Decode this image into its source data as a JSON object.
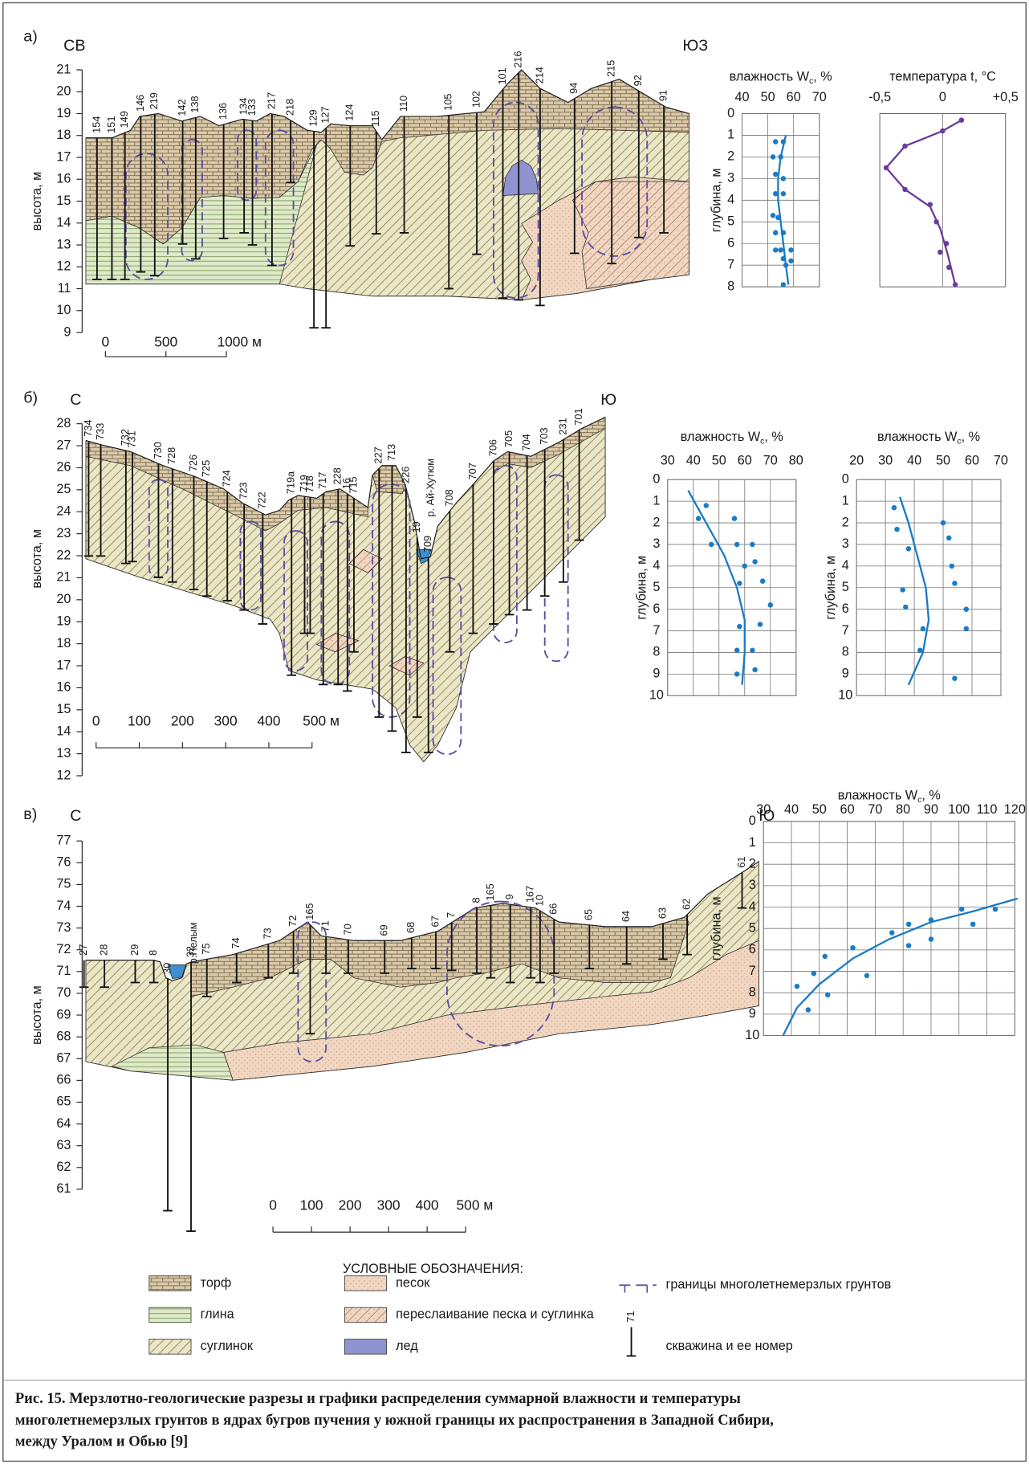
{
  "panels": [
    {
      "label": "а)",
      "dir_left": "СВ",
      "dir_right": "ЮЗ",
      "y_label": "высота, м",
      "yticks": [
        9,
        10,
        11,
        12,
        13,
        14,
        15,
        16,
        17,
        18,
        19,
        20,
        21
      ],
      "scale": [
        0,
        500,
        {
          "value": 1000,
          "label": "1000 м"
        }
      ],
      "boreholes": [
        "154",
        "151",
        "149",
        "146",
        "219",
        "142",
        "138",
        "136",
        "134",
        "133",
        "217",
        "218",
        "129",
        "127",
        "124",
        "115",
        "110",
        "105",
        "102",
        "101",
        "216",
        "214",
        "94",
        "215",
        "92",
        "91"
      ],
      "charts": [
        {
          "type": "scatter",
          "title": "влажность W",
          "title_sub": "c",
          "title_end": ", %",
          "y_label": "глубина, м",
          "xlim": [
            40,
            70
          ],
          "xticks": [
            40,
            50,
            60,
            70
          ],
          "ylim": [
            0,
            8
          ],
          "yticks": [
            0,
            1,
            2,
            3,
            4,
            5,
            6,
            7,
            8
          ],
          "color": "#1b7bc4",
          "points": {
            "x": [
              53,
              56,
              52,
              55,
              53,
              56,
              53,
              56,
              52,
              54,
              53,
              56,
              53,
              55,
              59,
              56,
              57,
              59,
              56
            ],
            "y": [
              1.3,
              1.3,
              2,
              2,
              2.8,
              3,
              3.7,
              3.7,
              4.7,
              4.8,
              5.5,
              5.5,
              6.3,
              6.3,
              6.3,
              6.7,
              7,
              6.8,
              7.9
            ]
          },
          "curve": {
            "x": [
              57,
              55,
              54,
              54,
              55,
              56,
              57,
              58
            ],
            "y": [
              1,
              2,
              3,
              4,
              5,
              6,
              7,
              7.9
            ]
          }
        },
        {
          "type": "scatter",
          "title": "температура t, °C",
          "xlim": [
            -0.5,
            0.5
          ],
          "xticks": [
            {
              "value": -0.5,
              "label": "-0,5"
            },
            0,
            {
              "value": 0.5,
              "label": "+0,5"
            }
          ],
          "ylim": [
            0,
            8
          ],
          "color": "#6a3d9a",
          "points": {
            "x": [
              0.15,
              0,
              -0.3,
              -0.45,
              -0.3,
              -0.1,
              -0.05,
              0.03,
              -0.02,
              0.05,
              0.1
            ],
            "y": [
              0.3,
              0.8,
              1.5,
              2.5,
              3.5,
              4.2,
              5,
              6,
              6.4,
              7.1,
              7.9
            ]
          },
          "curve": {
            "x": [
              0.15,
              0,
              -0.3,
              -0.45,
              -0.3,
              -0.1,
              -0.02,
              0.04,
              0.1
            ],
            "y": [
              0.3,
              0.8,
              1.5,
              2.5,
              3.5,
              4.3,
              5.3,
              6.5,
              7.9
            ]
          }
        }
      ]
    },
    {
      "label": "б)",
      "dir_left": "С",
      "dir_right": "Ю",
      "y_label": "высота, м",
      "river": "р. Ай-Хутюм",
      "yticks": [
        12,
        13,
        14,
        15,
        16,
        17,
        18,
        19,
        20,
        21,
        22,
        23,
        24,
        25,
        26,
        27,
        28
      ],
      "scale": [
        0,
        100,
        200,
        300,
        400,
        {
          "value": 500,
          "label": "500 м"
        }
      ],
      "boreholes": [
        "734",
        "733",
        "732",
        "731",
        "730",
        "728",
        "726",
        "725",
        "724",
        "723",
        "722",
        "719а",
        "719",
        "718",
        "717",
        "228",
        "16",
        "715",
        "227",
        "713",
        "226",
        "19",
        "709",
        "708",
        "707",
        "706",
        "705",
        "704",
        "703",
        "231",
        "701"
      ],
      "charts": [
        {
          "type": "scatter",
          "title": "влажность W",
          "title_sub": "c",
          "title_end": ", %",
          "y_label": "глубина, м",
          "xlim": [
            30,
            80
          ],
          "xticks": [
            30,
            40,
            50,
            60,
            70,
            80
          ],
          "ylim": [
            0,
            10
          ],
          "yticks": [
            0,
            1,
            2,
            3,
            4,
            5,
            6,
            7,
            8,
            9,
            10
          ],
          "color": "#1b7bc4",
          "points": {
            "x": [
              42,
              45,
              47,
              56,
              57,
              63,
              60,
              64,
              58,
              67,
              70,
              58,
              66,
              57,
              63,
              57,
              64
            ],
            "y": [
              1.8,
              1.2,
              3,
              1.8,
              3,
              3,
              4,
              3.8,
              4.8,
              4.7,
              5.8,
              6.8,
              6.7,
              7.9,
              7.9,
              9,
              8.8
            ]
          },
          "curve": {
            "x": [
              38,
              45,
              52,
              57,
              60,
              60,
              59
            ],
            "y": [
              0.5,
              2,
              3.5,
              5,
              6.5,
              8,
              9.5
            ]
          }
        },
        {
          "type": "scatter",
          "title": "влажность W",
          "title_sub": "c",
          "title_end": ", %",
          "y_label": "глубина, м",
          "xlim": [
            20,
            70
          ],
          "xticks": [
            20,
            30,
            40,
            50,
            60,
            70
          ],
          "ylim": [
            0,
            10
          ],
          "yticks": [
            0,
            1,
            2,
            3,
            4,
            5,
            6,
            7,
            8,
            9,
            10
          ],
          "color": "#1b7bc4",
          "points": {
            "x": [
              33,
              34,
              38,
              50,
              52,
              53,
              54,
              36,
              37,
              58,
              58,
              43,
              42,
              54
            ],
            "y": [
              1.3,
              2.3,
              3.2,
              2,
              2.7,
              4,
              4.8,
              5.1,
              5.9,
              6,
              6.9,
              6.9,
              7.9,
              9.2
            ]
          },
          "curve": {
            "x": [
              35,
              38,
              41,
              44,
              45,
              43,
              38
            ],
            "y": [
              0.8,
              2,
              3.5,
              5,
              6.5,
              8,
              9.5
            ]
          }
        }
      ]
    },
    {
      "label": "в)",
      "dir_left": "С",
      "dir_right": "Ю",
      "y_label": "высота, м",
      "river": "р.Пелым",
      "yticks": [
        61,
        62,
        63,
        64,
        65,
        66,
        67,
        68,
        69,
        70,
        71,
        72,
        73,
        74,
        75,
        76,
        77
      ],
      "scale": [
        0,
        100,
        200,
        300,
        400,
        {
          "value": 500,
          "label": "500 м"
        }
      ],
      "boreholes": [
        "27",
        "28",
        "29",
        "8",
        "30",
        "32",
        "75",
        "74",
        "73",
        "72",
        "165",
        "71",
        "70",
        "69",
        "68",
        "67",
        "7",
        "8",
        "165",
        "9",
        "167",
        "10",
        "66",
        "65",
        "64",
        "63",
        "62",
        "61"
      ],
      "charts": [
        {
          "type": "scatter",
          "title": "влажность W",
          "title_sub": "c",
          "title_end": ", %",
          "y_label": "глубина, м",
          "xlim": [
            30,
            120
          ],
          "xticks": [
            30,
            40,
            50,
            60,
            70,
            80,
            90,
            100,
            110,
            120
          ],
          "ylim": [
            0,
            10
          ],
          "yticks": [
            0,
            1,
            2,
            3,
            4,
            5,
            6,
            7,
            8,
            9,
            10
          ],
          "color": "#1b7bc4",
          "points": {
            "x": [
              113,
              101,
              105,
              90,
              82,
              76,
              90,
              82,
              62,
              52,
              48,
              67,
              53,
              42,
              46
            ],
            "y": [
              4.1,
              4.1,
              4.8,
              4.6,
              4.8,
              5.2,
              5.5,
              5.8,
              5.9,
              6.3,
              7.1,
              7.2,
              8.1,
              7.7,
              8.8
            ]
          },
          "curve": {
            "x": [
              37,
              42,
              50,
              62,
              75,
              90,
              105,
              121
            ],
            "y": [
              10,
              8.7,
              7.6,
              6.4,
              5.5,
              4.7,
              4.2,
              3.6
            ]
          }
        }
      ]
    }
  ],
  "legend": {
    "title": "УСЛОВНЫЕ ОБОЗНАЧЕНИЯ:",
    "items": [
      "торф",
      "глина",
      "суглинок",
      "песок",
      "переслаивание песка и суглинка",
      "лед",
      "границы многолетнемерзлых грунтов",
      "скважина и ее номер"
    ],
    "borehole_example": "71"
  },
  "caption_lines": [
    "Рис. 15. Мерзлотно-геологические разрезы и графики распределения суммарной влажности и температуры",
    "многолетнемерзлых грунтов в ядрах бугров пучения у южной границы их распространения в Западной Сибири,",
    "между Уралом и Обью [9]"
  ]
}
